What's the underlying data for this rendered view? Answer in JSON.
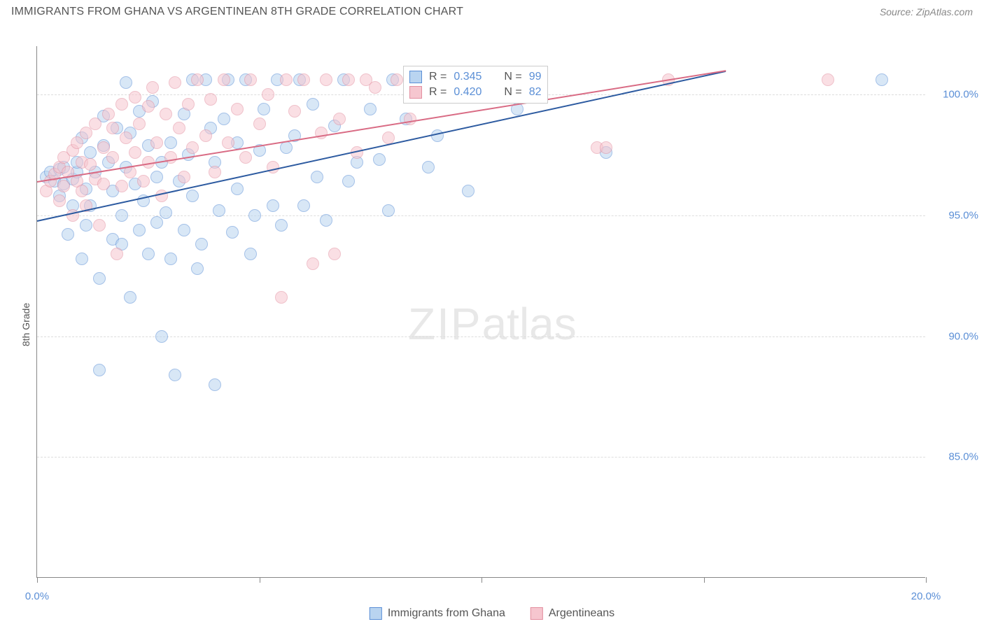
{
  "title": "IMMIGRANTS FROM GHANA VS ARGENTINEAN 8TH GRADE CORRELATION CHART",
  "source_label": "Source: ZipAtlas.com",
  "y_axis_label": "8th Grade",
  "watermark_zip": "ZIP",
  "watermark_atlas": "atlas",
  "chart": {
    "type": "scatter",
    "background_color": "#ffffff",
    "grid_color": "#dddddd",
    "axis_color": "#888888",
    "tick_label_color": "#5b8fd6",
    "tick_fontsize": 15,
    "xlim": [
      0,
      20
    ],
    "ylim": [
      80,
      102
    ],
    "xticks": [
      0,
      5,
      10,
      15,
      20
    ],
    "xtick_labels": [
      "0.0%",
      "",
      "",
      "",
      "20.0%"
    ],
    "yticks": [
      85,
      90,
      95,
      100
    ],
    "ytick_labels": [
      "85.0%",
      "90.0%",
      "95.0%",
      "100.0%"
    ],
    "marker_size": 18,
    "marker_opacity": 0.55,
    "line_width": 2
  },
  "series": [
    {
      "name": "Immigrants from Ghana",
      "fill": "#b9d4f0",
      "stroke": "#5b8fd6",
      "line_color": "#2c5aa0",
      "r_label": "R =",
      "r_value": "0.345",
      "n_label": "N =",
      "n_value": "99",
      "trend": {
        "x1": 0,
        "y1": 94.8,
        "x2": 15.5,
        "y2": 101.0
      },
      "points": [
        [
          0.2,
          96.6
        ],
        [
          0.3,
          96.8
        ],
        [
          0.4,
          96.4
        ],
        [
          0.5,
          95.8
        ],
        [
          0.5,
          96.9
        ],
        [
          0.6,
          96.3
        ],
        [
          0.6,
          97.0
        ],
        [
          0.7,
          94.2
        ],
        [
          0.8,
          95.4
        ],
        [
          0.8,
          96.5
        ],
        [
          0.9,
          96.8
        ],
        [
          0.9,
          97.2
        ],
        [
          1.0,
          93.2
        ],
        [
          1.0,
          98.2
        ],
        [
          1.1,
          94.6
        ],
        [
          1.1,
          96.1
        ],
        [
          1.2,
          97.6
        ],
        [
          1.2,
          95.4
        ],
        [
          1.3,
          96.8
        ],
        [
          1.4,
          88.6
        ],
        [
          1.4,
          92.4
        ],
        [
          1.5,
          97.9
        ],
        [
          1.5,
          99.1
        ],
        [
          1.6,
          97.2
        ],
        [
          1.7,
          94.0
        ],
        [
          1.7,
          96.0
        ],
        [
          1.8,
          98.6
        ],
        [
          1.9,
          93.8
        ],
        [
          1.9,
          95.0
        ],
        [
          2.0,
          100.5
        ],
        [
          2.0,
          97.0
        ],
        [
          2.1,
          91.6
        ],
        [
          2.1,
          98.4
        ],
        [
          2.2,
          96.3
        ],
        [
          2.3,
          94.4
        ],
        [
          2.3,
          99.3
        ],
        [
          2.4,
          95.6
        ],
        [
          2.5,
          93.4
        ],
        [
          2.5,
          97.9
        ],
        [
          2.6,
          99.7
        ],
        [
          2.7,
          96.6
        ],
        [
          2.7,
          94.7
        ],
        [
          2.8,
          90.0
        ],
        [
          2.8,
          97.2
        ],
        [
          2.9,
          95.1
        ],
        [
          3.0,
          93.2
        ],
        [
          3.0,
          98.0
        ],
        [
          3.1,
          88.4
        ],
        [
          3.2,
          96.4
        ],
        [
          3.3,
          99.2
        ],
        [
          3.3,
          94.4
        ],
        [
          3.4,
          97.5
        ],
        [
          3.5,
          100.6
        ],
        [
          3.5,
          95.8
        ],
        [
          3.6,
          92.8
        ],
        [
          3.7,
          93.8
        ],
        [
          3.8,
          100.6
        ],
        [
          3.9,
          98.6
        ],
        [
          4.0,
          97.2
        ],
        [
          4.0,
          88.0
        ],
        [
          4.1,
          95.2
        ],
        [
          4.2,
          99.0
        ],
        [
          4.3,
          100.6
        ],
        [
          4.4,
          94.3
        ],
        [
          4.5,
          96.1
        ],
        [
          4.5,
          98.0
        ],
        [
          4.7,
          100.6
        ],
        [
          4.8,
          93.4
        ],
        [
          4.9,
          95.0
        ],
        [
          5.0,
          97.7
        ],
        [
          5.1,
          99.4
        ],
        [
          5.3,
          95.4
        ],
        [
          5.4,
          100.6
        ],
        [
          5.5,
          94.6
        ],
        [
          5.6,
          97.8
        ],
        [
          5.8,
          98.3
        ],
        [
          5.9,
          100.6
        ],
        [
          6.0,
          95.4
        ],
        [
          6.2,
          99.6
        ],
        [
          6.3,
          96.6
        ],
        [
          6.5,
          94.8
        ],
        [
          6.7,
          98.7
        ],
        [
          6.9,
          100.6
        ],
        [
          7.0,
          96.4
        ],
        [
          7.2,
          97.2
        ],
        [
          7.5,
          99.4
        ],
        [
          7.7,
          97.3
        ],
        [
          7.9,
          95.2
        ],
        [
          8.0,
          100.6
        ],
        [
          8.3,
          99.0
        ],
        [
          8.5,
          100.6
        ],
        [
          8.8,
          97.0
        ],
        [
          9.0,
          98.3
        ],
        [
          9.3,
          100.6
        ],
        [
          9.7,
          96.0
        ],
        [
          10.2,
          100.6
        ],
        [
          10.8,
          99.4
        ],
        [
          12.8,
          97.6
        ],
        [
          19.0,
          100.6
        ]
      ]
    },
    {
      "name": "Argentineans",
      "fill": "#f6c6cf",
      "stroke": "#e38fa0",
      "line_color": "#d96b84",
      "r_label": "R =",
      "r_value": "0.420",
      "n_label": "N =",
      "n_value": "82",
      "trend": {
        "x1": 0,
        "y1": 96.4,
        "x2": 15.5,
        "y2": 101.0
      },
      "points": [
        [
          0.2,
          96.0
        ],
        [
          0.3,
          96.4
        ],
        [
          0.4,
          96.7
        ],
        [
          0.5,
          95.6
        ],
        [
          0.5,
          97.0
        ],
        [
          0.6,
          96.2
        ],
        [
          0.6,
          97.4
        ],
        [
          0.7,
          96.8
        ],
        [
          0.8,
          95.0
        ],
        [
          0.8,
          97.7
        ],
        [
          0.9,
          96.4
        ],
        [
          0.9,
          98.0
        ],
        [
          1.0,
          97.2
        ],
        [
          1.0,
          96.0
        ],
        [
          1.1,
          98.4
        ],
        [
          1.1,
          95.4
        ],
        [
          1.2,
          97.1
        ],
        [
          1.3,
          96.5
        ],
        [
          1.3,
          98.8
        ],
        [
          1.4,
          94.6
        ],
        [
          1.5,
          97.8
        ],
        [
          1.5,
          96.3
        ],
        [
          1.6,
          99.2
        ],
        [
          1.7,
          97.4
        ],
        [
          1.7,
          98.6
        ],
        [
          1.8,
          93.4
        ],
        [
          1.9,
          96.2
        ],
        [
          1.9,
          99.6
        ],
        [
          2.0,
          98.2
        ],
        [
          2.1,
          96.8
        ],
        [
          2.2,
          99.9
        ],
        [
          2.2,
          97.6
        ],
        [
          2.3,
          98.8
        ],
        [
          2.4,
          96.4
        ],
        [
          2.5,
          99.5
        ],
        [
          2.5,
          97.2
        ],
        [
          2.6,
          100.3
        ],
        [
          2.7,
          98.0
        ],
        [
          2.8,
          95.8
        ],
        [
          2.9,
          99.2
        ],
        [
          3.0,
          97.4
        ],
        [
          3.1,
          100.5
        ],
        [
          3.2,
          98.6
        ],
        [
          3.3,
          96.6
        ],
        [
          3.4,
          99.6
        ],
        [
          3.5,
          97.8
        ],
        [
          3.6,
          100.6
        ],
        [
          3.8,
          98.3
        ],
        [
          3.9,
          99.8
        ],
        [
          4.0,
          96.8
        ],
        [
          4.2,
          100.6
        ],
        [
          4.3,
          98.0
        ],
        [
          4.5,
          99.4
        ],
        [
          4.7,
          97.4
        ],
        [
          4.8,
          100.6
        ],
        [
          5.0,
          98.8
        ],
        [
          5.2,
          100.0
        ],
        [
          5.3,
          97.0
        ],
        [
          5.5,
          91.6
        ],
        [
          5.6,
          100.6
        ],
        [
          5.8,
          99.3
        ],
        [
          6.0,
          100.6
        ],
        [
          6.2,
          93.0
        ],
        [
          6.4,
          98.4
        ],
        [
          6.5,
          100.6
        ],
        [
          6.7,
          93.4
        ],
        [
          6.8,
          99.0
        ],
        [
          7.0,
          100.6
        ],
        [
          7.2,
          97.6
        ],
        [
          7.4,
          100.6
        ],
        [
          7.6,
          100.3
        ],
        [
          7.9,
          98.2
        ],
        [
          8.1,
          100.6
        ],
        [
          8.4,
          99.0
        ],
        [
          8.6,
          100.6
        ],
        [
          8.8,
          100.6
        ],
        [
          9.0,
          100.6
        ],
        [
          9.3,
          100.6
        ],
        [
          12.6,
          97.8
        ],
        [
          12.8,
          97.8
        ],
        [
          14.2,
          100.6
        ],
        [
          17.8,
          100.6
        ]
      ]
    }
  ],
  "bottom_legend": {
    "item1": "Immigrants from Ghana",
    "item2": "Argentineans"
  }
}
